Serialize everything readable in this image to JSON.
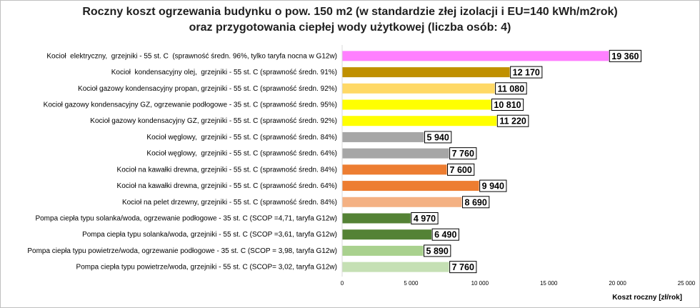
{
  "chart_data": {
    "type": "bar",
    "orientation": "horizontal",
    "title_line1": "Roczny koszt ogrzewania budynku o pow. 150 m2 (w standardzie złej izolacji i EU=140 kWh/m2rok)",
    "title_line2": "oraz przygotowania ciepłej wody użytkowej (liczba osób: 4)",
    "xlabel": "Koszt roczny [zł/rok]",
    "xlim": [
      0,
      25000
    ],
    "xticks": [
      0,
      5000,
      10000,
      15000,
      20000,
      25000
    ],
    "xtick_labels": [
      "0",
      "5 000",
      "10 000",
      "15 000",
      "20 000",
      "25 000"
    ],
    "grid": false,
    "legend": "none",
    "bars": [
      {
        "label": "Kocioł  elektryczny,  grzejniki - 55 st. C  (sprawność średn. 96%, tylko taryfa nocna w G12w)",
        "value": 19360,
        "value_label": "19 360",
        "color": "#ff80ff"
      },
      {
        "label": "Kocioł  kondensacyjny olej,  grzejniki - 55 st. C (sprawność średn. 91%)",
        "value": 12170,
        "value_label": "12 170",
        "color": "#c09000"
      },
      {
        "label": "Kocioł gazowy kondensacyjny propan, grzejniki - 55 st. C (sprawność średn. 92%)",
        "value": 11080,
        "value_label": "11 080",
        "color": "#ffd966"
      },
      {
        "label": "Kocioł gazowy kondensacyjny GZ, ogrzewanie podłogowe - 35 st. C (sprawność średn. 95%)",
        "value": 10810,
        "value_label": "10 810",
        "color": "#ffff00"
      },
      {
        "label": "Kocioł gazowy kondensacyjny GZ, grzejniki - 55 st. C (sprawność średn. 92%)",
        "value": 11220,
        "value_label": "11 220",
        "color": "#ffff00"
      },
      {
        "label": "Kocioł węglowy,  grzejniki - 55 st. C (sprawność średn. 84%)",
        "value": 5940,
        "value_label": "5 940",
        "color": "#a6a6a6"
      },
      {
        "label": "Kocioł węglowy,  grzejniki - 55 st. C (sprawność średn. 64%)",
        "value": 7760,
        "value_label": "7 760",
        "color": "#a6a6a6"
      },
      {
        "label": "Kocioł na kawałki drewna, grzejniki - 55 st. C (sprawność średn. 84%)",
        "value": 7600,
        "value_label": "7 600",
        "color": "#ed7d31"
      },
      {
        "label": "Kocioł na kawałki drewna, grzejniki - 55 st. C (sprawność średn. 64%)",
        "value": 9940,
        "value_label": "9 940",
        "color": "#ed7d31"
      },
      {
        "label": "Kocioł na pelet drzewny, grzejniki - 55 st. C (sprawność średn. 84%)",
        "value": 8690,
        "value_label": "8 690",
        "color": "#f4b183"
      },
      {
        "label": "Pompa ciepła typu solanka/woda, ogrzewanie podłogowe - 35 st. C (SCOP =4,71, taryfa G12w)",
        "value": 4970,
        "value_label": "4 970",
        "color": "#548235"
      },
      {
        "label": "Pompa ciepła typu solanka/woda, grzejniki - 55 st. C (SCOP =3,61, taryfa G12w)",
        "value": 6490,
        "value_label": "6 490",
        "color": "#548235"
      },
      {
        "label": "Pompa ciepła typu powietrze/woda, ogrzewanie podłogowe - 35 st. C (SCOP = 3,98, taryfa G12w)",
        "value": 5890,
        "value_label": "5 890",
        "color": "#a9d18e"
      },
      {
        "label": "Pompa ciepła typu powietrze/woda, grzejniki - 55 st. C (SCOP= 3,02, taryfa G12w)",
        "value": 7760,
        "value_label": "7 760",
        "color": "#c5e0b4"
      }
    ]
  }
}
